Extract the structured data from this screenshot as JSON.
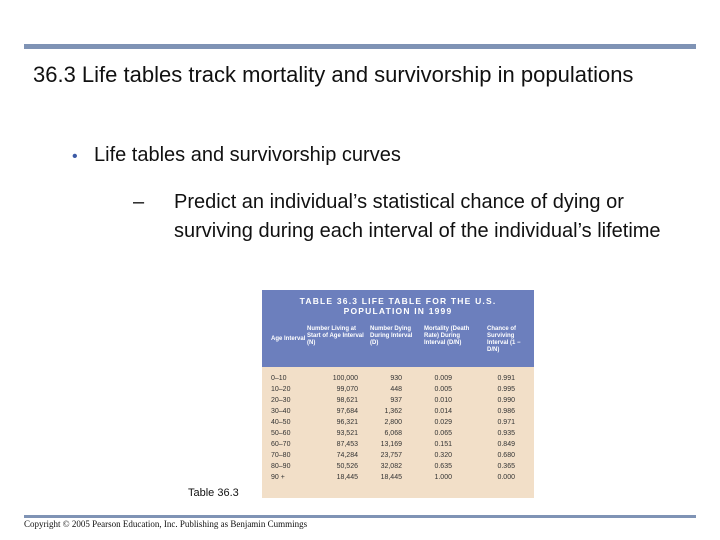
{
  "slide": {
    "title": "36.3 Life tables track mortality and survivorship in populations",
    "bullet": "Life tables and survivorship curves",
    "bullet_marker": "•",
    "sub_marker": "–",
    "sub_bullet": "Predict an individual’s statistical chance of dying or surviving during each interval of the individual’s lifetime",
    "caption": "Table 36.3",
    "footer": "Copyright © 2005 Pearson Education, Inc. Publishing as Benjamin Cummings"
  },
  "table": {
    "title_line1": "TABLE 36.3  LIFE TABLE FOR THE U.S.",
    "title_line2": "POPULATION IN 1999",
    "headers": [
      "Age Interval",
      "Number Living at Start of Age Interval (N)",
      "Number Dying During Interval (D)",
      "Mortality (Death Rate) During Interval (D/N)",
      "Chance of Surviving Interval (1 − D/N)"
    ],
    "rows": [
      [
        "0–10",
        "100,000",
        "930",
        "0.009",
        "0.991"
      ],
      [
        "10–20",
        "99,070",
        "448",
        "0.005",
        "0.995"
      ],
      [
        "20–30",
        "98,621",
        "937",
        "0.010",
        "0.990"
      ],
      [
        "30–40",
        "97,684",
        "1,362",
        "0.014",
        "0.986"
      ],
      [
        "40–50",
        "96,321",
        "2,800",
        "0.029",
        "0.971"
      ],
      [
        "50–60",
        "93,521",
        "6,068",
        "0.065",
        "0.935"
      ],
      [
        "60–70",
        "87,453",
        "13,169",
        "0.151",
        "0.849"
      ],
      [
        "70–80",
        "74,284",
        "23,757",
        "0.320",
        "0.680"
      ],
      [
        "80–90",
        "50,526",
        "32,082",
        "0.635",
        "0.365"
      ],
      [
        "90 +",
        "18,445",
        "18,445",
        "1.000",
        "0.000"
      ]
    ]
  },
  "colors": {
    "rule": "#7f93b5",
    "table_header": "#6c7fbd",
    "table_body": "#f2dfc8"
  }
}
